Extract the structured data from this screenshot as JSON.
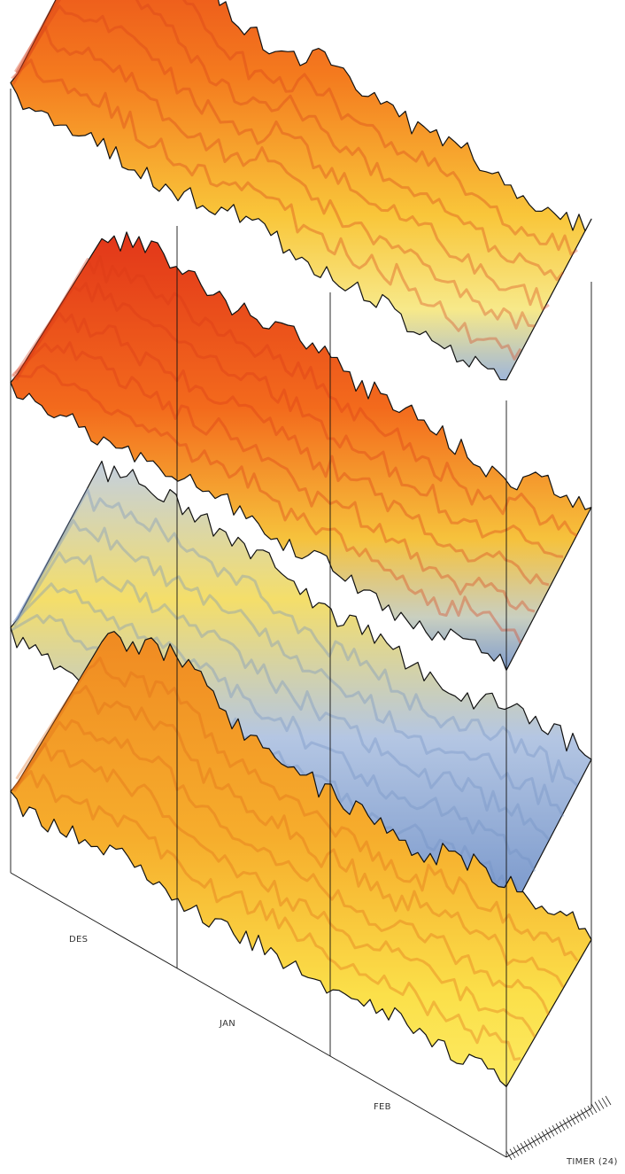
{
  "labels": {
    "months": [
      "DES",
      "JAN",
      "FEB"
    ],
    "axis": "TIMER (24)"
  }
}
